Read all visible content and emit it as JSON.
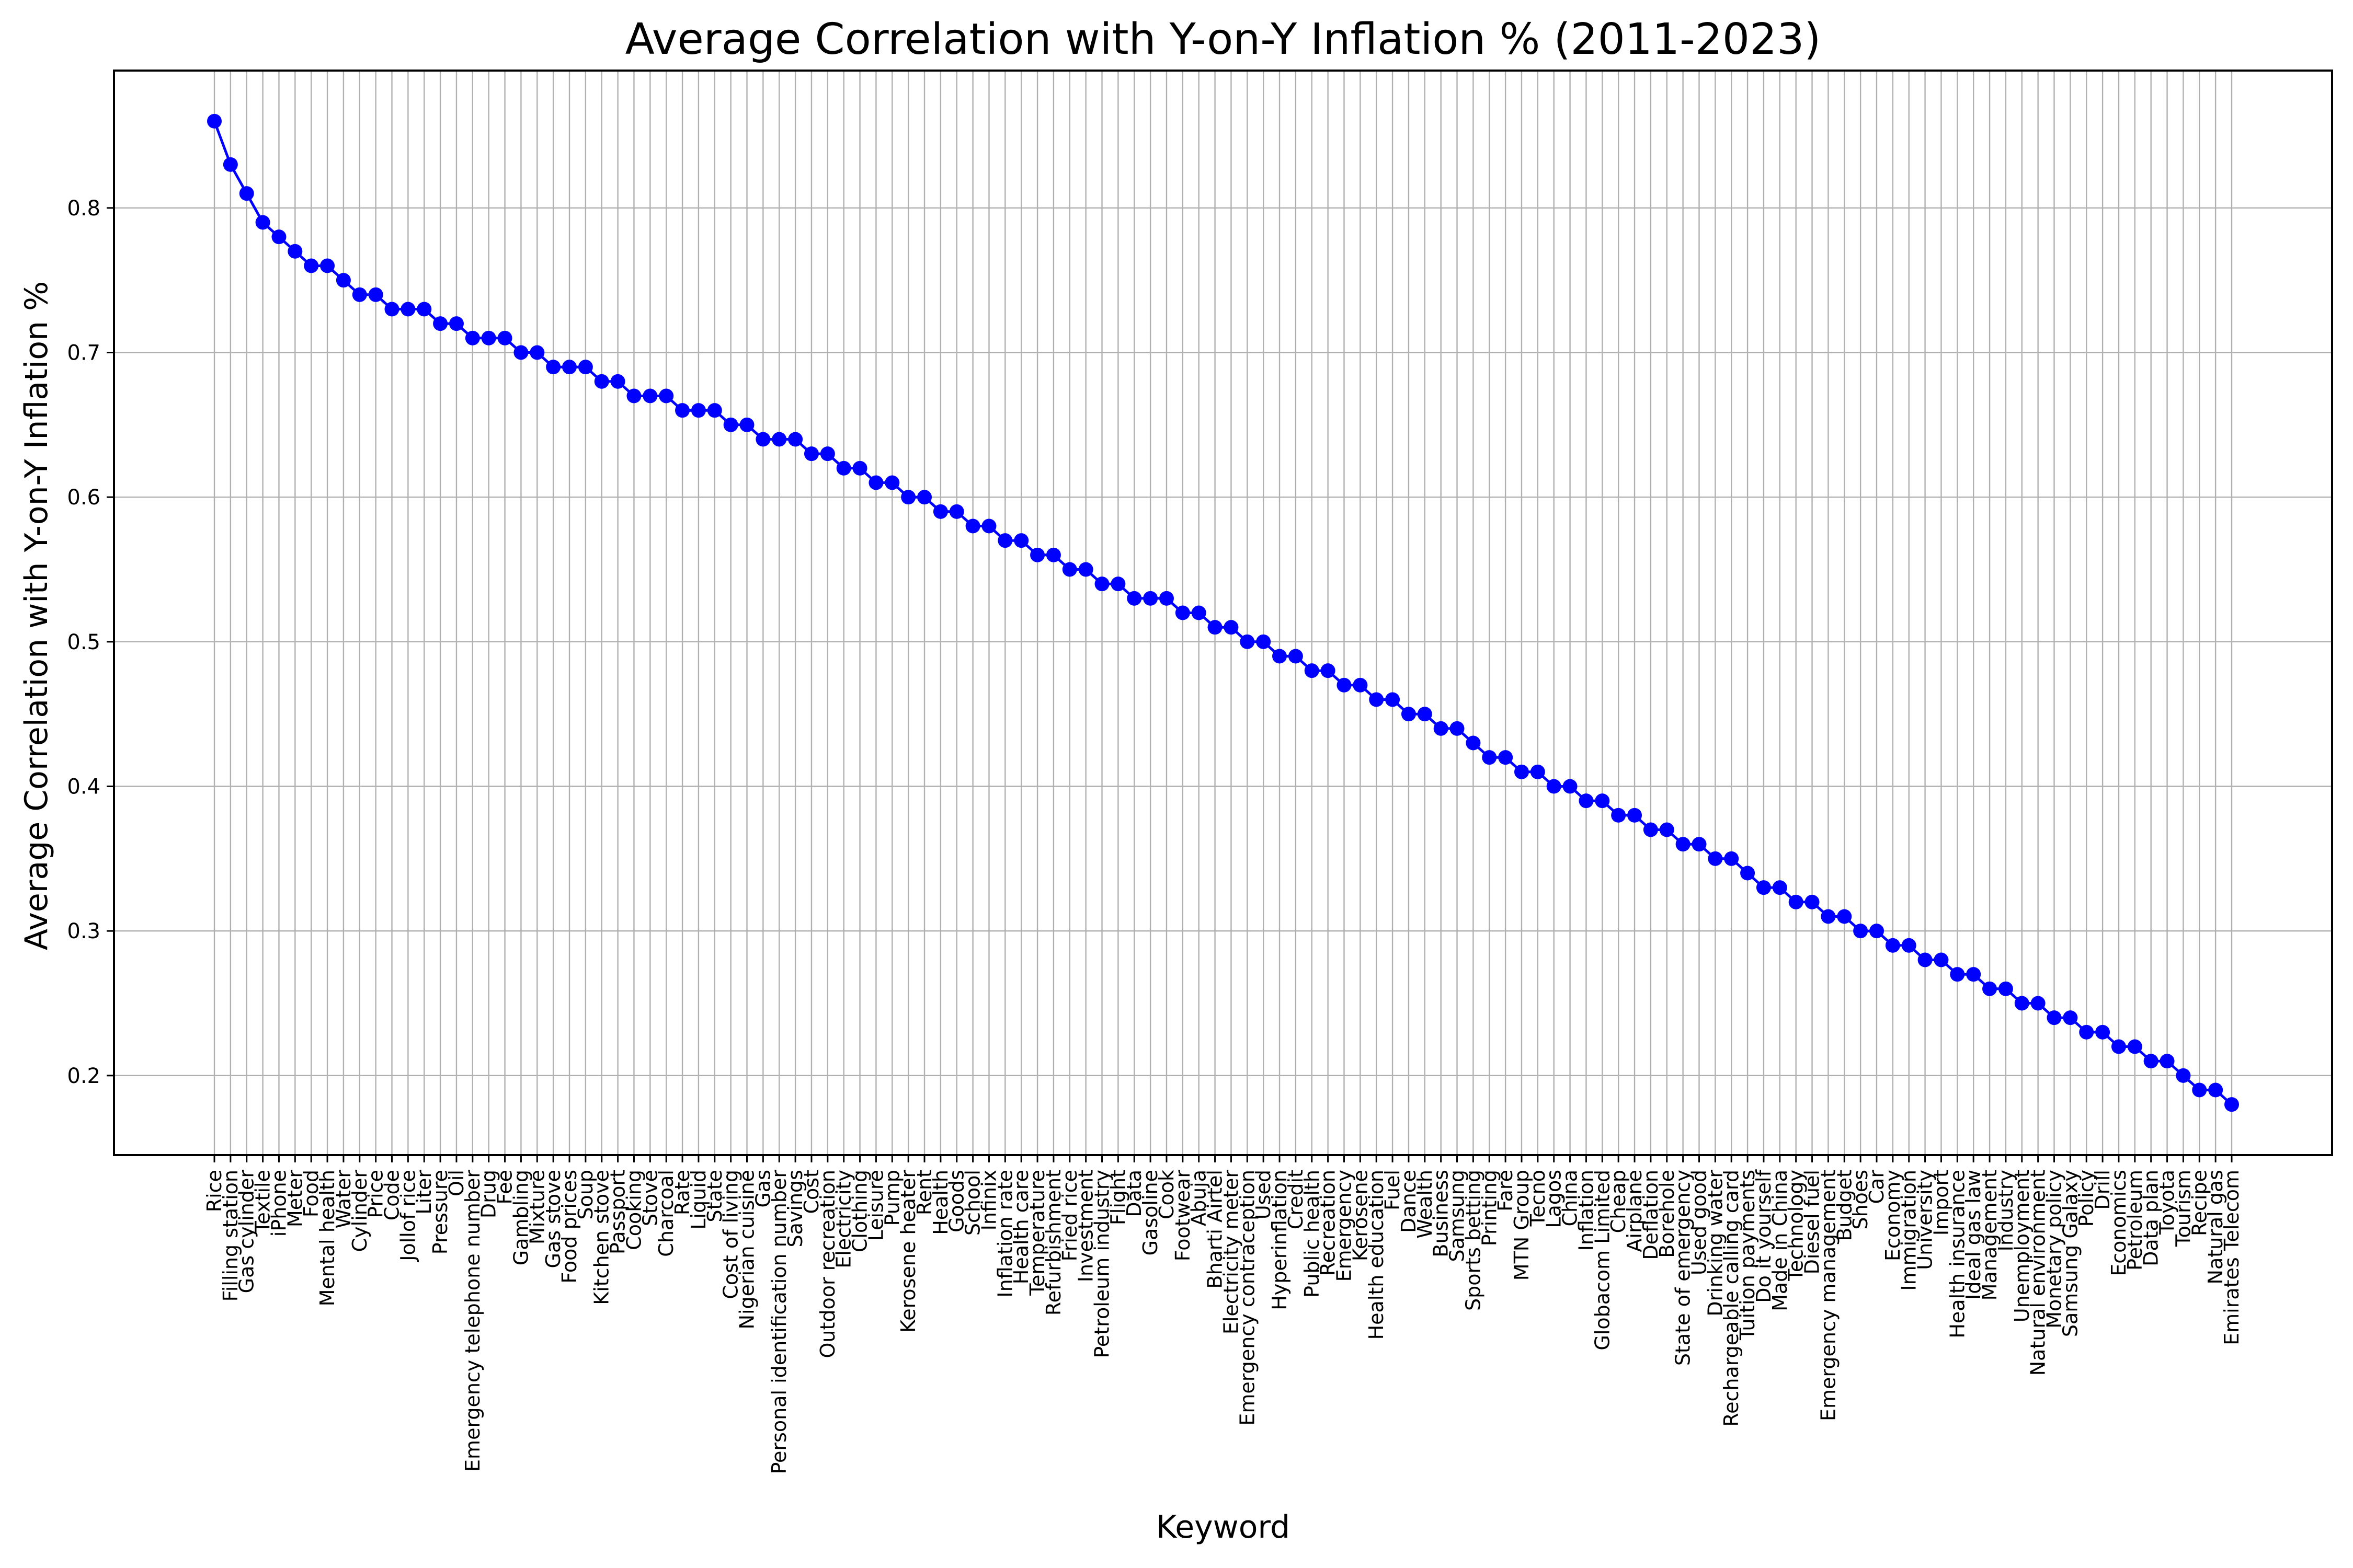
{
  "chart_data": {
    "type": "line",
    "title": "Average Correlation with Y-on-Y Inflation % (2011-2023)",
    "xlabel": "Keyword",
    "ylabel": "Average Correlation with Y-on-Y Inflation %",
    "ylim": [
      0.145,
      0.895
    ],
    "yticks": [
      "0.2",
      "0.3",
      "0.4",
      "0.5",
      "0.6",
      "0.7",
      "0.8"
    ],
    "grid": true,
    "line_color": "#0000ff",
    "marker_color": "#0000ff",
    "grid_color": "#b0b0b0",
    "categories": [
      "Rice",
      "Filling station",
      "Gas cylinder",
      "Textile",
      "iPhone",
      "Meter",
      "Food",
      "Mental health",
      "Water",
      "Cylinder",
      "Price",
      "Code",
      "Jollof rice",
      "Liter",
      "Pressure",
      "Oil",
      "Emergency telephone number",
      "Drug",
      "Fee",
      "Gambling",
      "Mixture",
      "Gas stove",
      "Food prices",
      "Soup",
      "Kitchen stove",
      "Passport",
      "Cooking",
      "Stove",
      "Charcoal",
      "Rate",
      "Liquid",
      "State",
      "Cost of living",
      "Nigerian cuisine",
      "Gas",
      "Personal identification number",
      "Savings",
      "Cost",
      "Outdoor recreation",
      "Electricity",
      "Clothing",
      "Leisure",
      "Pump",
      "Kerosene heater",
      "Rent",
      "Health",
      "Goods",
      "School",
      "Infinix",
      "Inflation rate",
      "Health care",
      "Temperature",
      "Refurbishment",
      "Fried rice",
      "Investment",
      "Petroleum industry",
      "Flight",
      "Data",
      "Gasoline",
      "Cook",
      "Footwear",
      "Abuja",
      "Bharti Airtel",
      "Electricity meter",
      "Emergency contraception",
      "Used",
      "Hyperinflation",
      "Credit",
      "Public health",
      "Recreation",
      "Emergency",
      "Kerosene",
      "Health education",
      "Fuel",
      "Dance",
      "Wealth",
      "Business",
      "Samsung",
      "Sports betting",
      "Printing",
      "Fare",
      "MTN Group",
      "Tecno",
      "Lagos",
      "China",
      "Inflation",
      "Globacom Limited",
      "Cheap",
      "Airplane",
      "Deflation",
      "Borehole",
      "State of emergency",
      "Used good",
      "Drinking water",
      "Rechargeable calling card",
      "Tuition payments",
      "Do it yourself",
      "Made in China",
      "Technology",
      "Diesel fuel",
      "Emergency management",
      "Budget",
      "Shoes",
      "Car",
      "Economy",
      "Immigration",
      "University",
      "Import",
      "Health insurance",
      "Ideal gas law",
      "Management",
      "Industry",
      "Unemployment",
      "Natural environment",
      "Monetary policy",
      "Samsung Galaxy",
      "Policy",
      "Drill",
      "Economics",
      "Petroleum",
      "Data plan",
      "Toyota",
      "Tourism",
      "Recipe",
      "Natural gas",
      "Emirates Telecom"
    ],
    "values": [
      0.86,
      0.83,
      0.81,
      0.79,
      0.78,
      0.77,
      0.76,
      0.76,
      0.75,
      0.74,
      0.74,
      0.73,
      0.73,
      0.73,
      0.72,
      0.72,
      0.71,
      0.71,
      0.71,
      0.7,
      0.7,
      0.69,
      0.69,
      0.69,
      0.68,
      0.68,
      0.67,
      0.67,
      0.67,
      0.66,
      0.66,
      0.66,
      0.65,
      0.65,
      0.64,
      0.64,
      0.64,
      0.63,
      0.63,
      0.62,
      0.62,
      0.61,
      0.61,
      0.6,
      0.6,
      0.59,
      0.59,
      0.58,
      0.58,
      0.57,
      0.57,
      0.56,
      0.56,
      0.55,
      0.55,
      0.54,
      0.54,
      0.53,
      0.53,
      0.53,
      0.52,
      0.52,
      0.51,
      0.51,
      0.5,
      0.5,
      0.49,
      0.49,
      0.48,
      0.48,
      0.47,
      0.47,
      0.46,
      0.46,
      0.45,
      0.45,
      0.44,
      0.44,
      0.43,
      0.42,
      0.42,
      0.41,
      0.41,
      0.4,
      0.4,
      0.39,
      0.39,
      0.38,
      0.38,
      0.37,
      0.37,
      0.36,
      0.36,
      0.35,
      0.35,
      0.34,
      0.33,
      0.33,
      0.32,
      0.32,
      0.31,
      0.31,
      0.3,
      0.3,
      0.29,
      0.29,
      0.28,
      0.28,
      0.27,
      0.27,
      0.26,
      0.26,
      0.25,
      0.25,
      0.24,
      0.24,
      0.23,
      0.23,
      0.22,
      0.22,
      0.21,
      0.21,
      0.2,
      0.19,
      0.19,
      0.18
    ]
  }
}
